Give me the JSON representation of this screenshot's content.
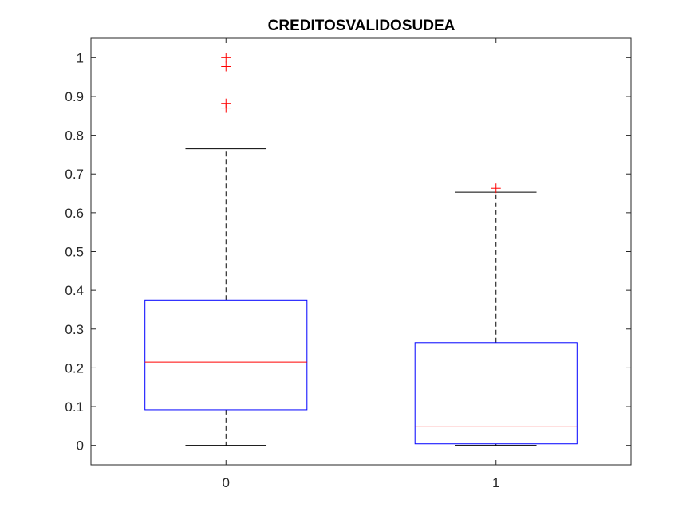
{
  "chart_data": {
    "type": "box",
    "title": "CREDITOSVALIDOSUDEA",
    "xlabel": "",
    "ylabel": "",
    "categories": [
      "0",
      "1"
    ],
    "ylim": [
      -0.05,
      1.05
    ],
    "yticks": [
      "0",
      "0.1",
      "0.2",
      "0.3",
      "0.4",
      "0.5",
      "0.6",
      "0.7",
      "0.8",
      "0.9",
      "1"
    ],
    "boxes": [
      {
        "category": "0",
        "whisker_low": 0.0,
        "q1": 0.092,
        "median": 0.215,
        "q3": 0.375,
        "whisker_high": 0.765,
        "outliers": [
          1.0,
          0.977,
          0.882,
          0.87
        ]
      },
      {
        "category": "1",
        "whisker_low": 0.0,
        "q1": 0.004,
        "median": 0.048,
        "q3": 0.265,
        "whisker_high": 0.653,
        "outliers": [
          0.663
        ]
      }
    ],
    "colors": {
      "box": "#0000ff",
      "median": "#ff0000",
      "whisker": "#000000",
      "outlier": "#ff0000",
      "axes": "#262626"
    },
    "grid": false
  }
}
